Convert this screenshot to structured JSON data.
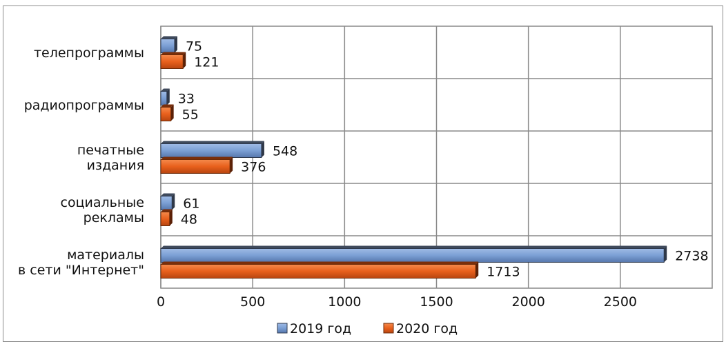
{
  "chart_data": {
    "type": "bar",
    "orientation": "horizontal",
    "categories": [
      "телепрограммы",
      "радиопрограммы",
      "печатные издания",
      "социальные рекламы",
      "материалы в сети \"Интернет\""
    ],
    "category_lines": [
      [
        "телепрограммы"
      ],
      [
        "радиопрограммы"
      ],
      [
        "печатные",
        "издания"
      ],
      [
        "социальные",
        "рекламы"
      ],
      [
        "материалы",
        "в сети \"Интернет\""
      ]
    ],
    "series": [
      {
        "name": "2019 год",
        "values": [
          75,
          33,
          548,
          61,
          2738
        ],
        "color": "#7b9fd4"
      },
      {
        "name": "2020 год",
        "values": [
          121,
          55,
          376,
          48,
          1713
        ],
        "color": "#e8601c"
      }
    ],
    "xlim": [
      0,
      3000
    ],
    "xticks": [
      0,
      500,
      1000,
      1500,
      2000,
      2500
    ],
    "grid": true,
    "legend_position": "bottom"
  }
}
